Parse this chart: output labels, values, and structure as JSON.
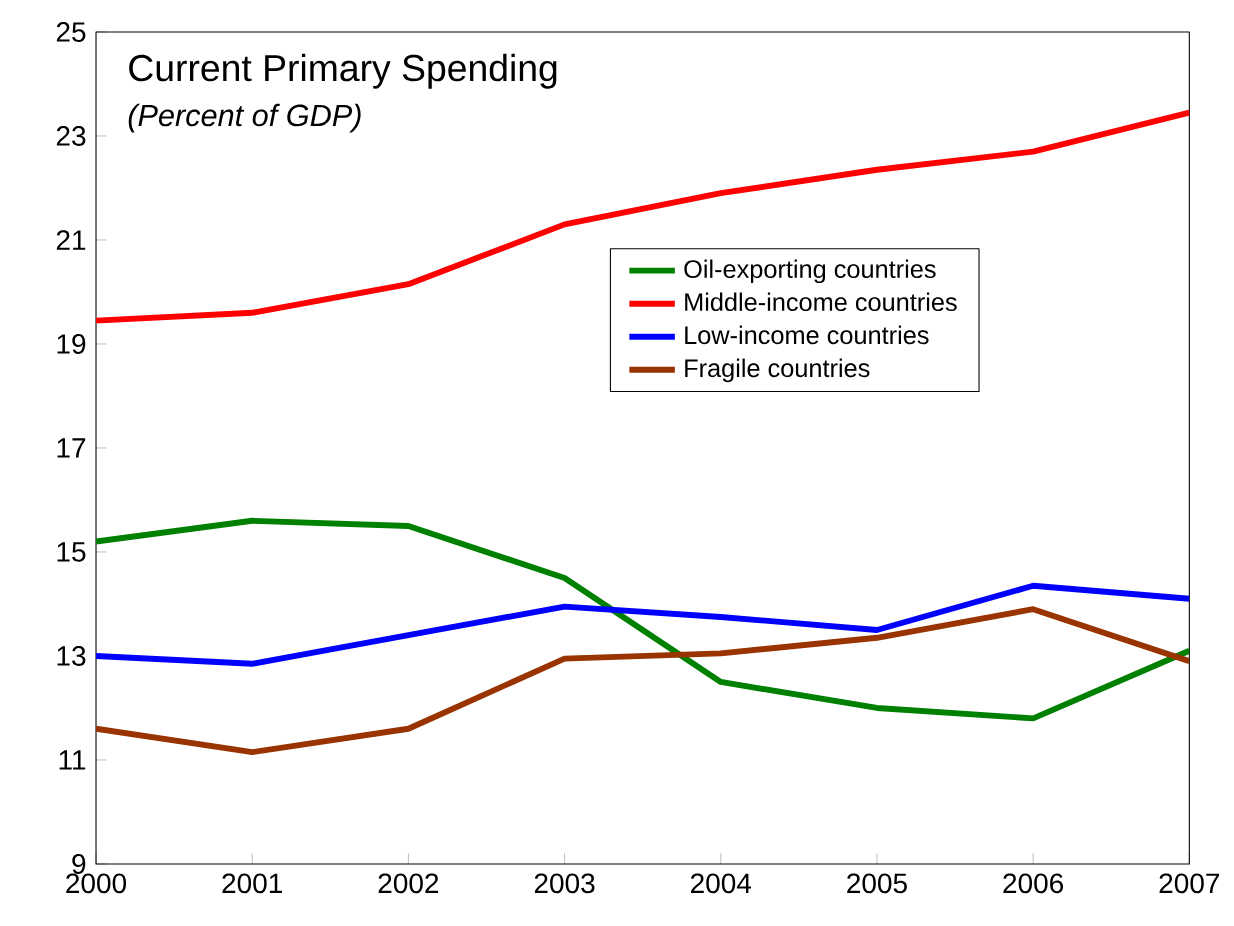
{
  "chart_data": {
    "type": "line",
    "title": "Current Primary Spending",
    "subtitle": "*(Percent of GDP)*",
    "x": [
      2000,
      2001,
      2002,
      2003,
      2004,
      2005,
      2006,
      2007
    ],
    "series": [
      {
        "name": "Oil-exporting countries",
        "color": "#008000",
        "values": [
          15.2,
          15.6,
          15.5,
          14.5,
          12.5,
          12.0,
          11.8,
          13.1
        ]
      },
      {
        "name": "Middle-income countries",
        "color": "#ff0000",
        "values": [
          19.45,
          19.6,
          20.15,
          21.3,
          21.9,
          22.35,
          22.7,
          23.45
        ]
      },
      {
        "name": "Low-income countries",
        "color": "#0000ff",
        "values": [
          13.0,
          12.85,
          13.4,
          13.95,
          13.75,
          13.5,
          14.35,
          14.1
        ]
      },
      {
        "name": "Fragile countries",
        "color": "#993300",
        "values": [
          11.6,
          11.15,
          11.6,
          12.95,
          13.05,
          13.35,
          13.9,
          12.9
        ]
      }
    ],
    "xlim": [
      2000,
      2007
    ],
    "xticks": [
      2000,
      2001,
      2002,
      2003,
      2004,
      2005,
      2006,
      2007
    ],
    "ylim": [
      9,
      25
    ],
    "yticks": [
      9,
      11,
      13,
      15,
      17,
      19,
      21,
      23,
      25
    ],
    "legend": "right",
    "grid": false,
    "marker": "none",
    "line_style": "solid"
  }
}
